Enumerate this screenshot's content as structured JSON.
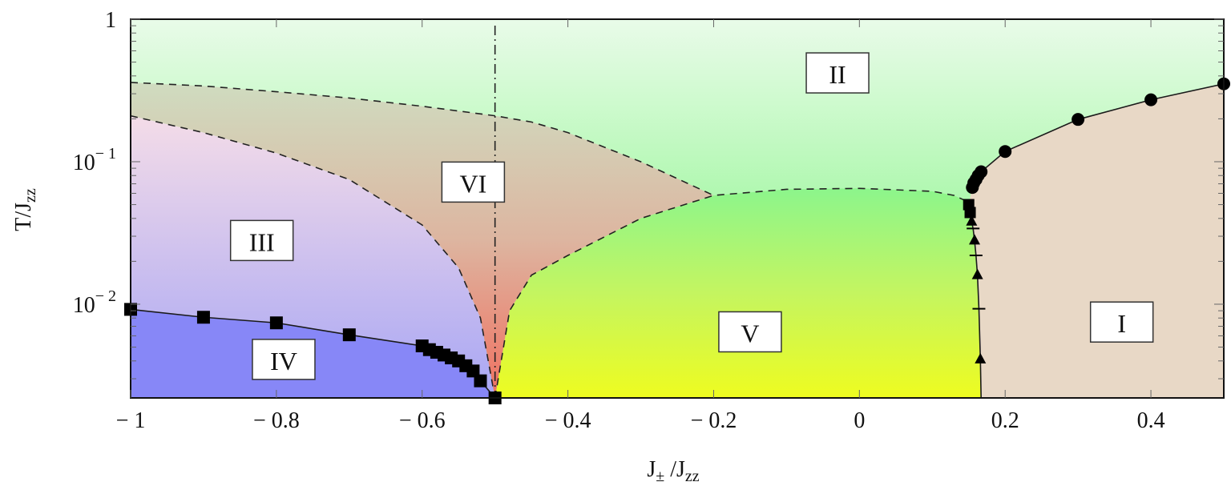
{
  "chart_data": {
    "type": "phase-diagram",
    "title": "",
    "xlabel": "J± /Jzz",
    "ylabel": "T/Jzz",
    "xscale": "linear",
    "yscale": "log",
    "xlim": [
      -1,
      0.5
    ],
    "ylim": [
      0.0022,
      1
    ],
    "x_ticks": [
      -1,
      -0.8,
      -0.6,
      -0.4,
      -0.2,
      0,
      0.2,
      0.4
    ],
    "x_tick_labels": [
      "− 1",
      "− 0.8",
      "− 0.6",
      "− 0.4",
      "− 0.2",
      "0",
      "0.2",
      "0.4"
    ],
    "y_ticks": [
      1,
      0.1,
      0.01
    ],
    "y_tick_labels": [
      "1",
      "10⁻¹",
      "10⁻²"
    ],
    "grid": false,
    "regions": [
      {
        "label": "I",
        "color": "#e8d8c6",
        "x": 0.36,
        "y": 0.0075
      },
      {
        "label": "II",
        "color": "#8ff58f",
        "x": -0.03,
        "y": 0.42
      },
      {
        "label": "III",
        "color": "#d9c6ec",
        "x": -0.82,
        "y": 0.028
      },
      {
        "label": "IV",
        "color": "#8585f8",
        "x": -0.79,
        "y": 0.0041
      },
      {
        "label": "V",
        "color": "#d7f63a",
        "x": -0.15,
        "y": 0.0064
      },
      {
        "label": "VI",
        "color": "#d8c0a8",
        "x": -0.53,
        "y": 0.072
      }
    ],
    "series": [
      {
        "name": "IV boundary (squares)",
        "marker": "square",
        "line": "solid",
        "x": [
          -1.0,
          -0.9,
          -0.8,
          -0.7,
          -0.6,
          -0.59,
          -0.58,
          -0.57,
          -0.56,
          -0.55,
          -0.54,
          -0.53,
          -0.52,
          -0.5
        ],
        "y": [
          0.0092,
          0.0081,
          0.0074,
          0.0061,
          0.0051,
          0.0048,
          0.0046,
          0.0044,
          0.0042,
          0.004,
          0.0037,
          0.0034,
          0.0029,
          0.0022
        ]
      },
      {
        "name": "I boundary (circles)",
        "marker": "circle",
        "line": "solid",
        "x": [
          0.155,
          0.157,
          0.16,
          0.163,
          0.167,
          0.2,
          0.3,
          0.4,
          0.5
        ],
        "y": [
          0.066,
          0.071,
          0.075,
          0.08,
          0.085,
          0.118,
          0.198,
          0.272,
          0.352
        ]
      },
      {
        "name": "I–V boundary (squares/triangles/bars)",
        "marker": "mixed",
        "line": "solid",
        "x": [
          0.15,
          0.152,
          0.154,
          0.156,
          0.158,
          0.16,
          0.162,
          0.164,
          0.166
        ],
        "y": [
          0.05,
          0.044,
          0.038,
          0.034,
          0.028,
          0.022,
          0.016,
          0.0093,
          0.0041
        ]
      },
      {
        "name": "upper dashed (II/VI crossover)",
        "line": "dashed",
        "x": [
          -1.0,
          -0.9,
          -0.8,
          -0.7,
          -0.6,
          -0.5,
          -0.45,
          -0.4,
          -0.3,
          -0.2
        ],
        "y": [
          0.36,
          0.34,
          0.31,
          0.28,
          0.245,
          0.21,
          0.19,
          0.16,
          0.1,
          0.058
        ]
      },
      {
        "name": "III/VI dashed",
        "line": "dashed",
        "x": [
          -1.0,
          -0.9,
          -0.8,
          -0.7,
          -0.6,
          -0.55,
          -0.52,
          -0.5
        ],
        "y": [
          0.21,
          0.16,
          0.115,
          0.075,
          0.036,
          0.018,
          0.008,
          0.0022
        ]
      },
      {
        "name": "V/VI and V/II dashed",
        "line": "dashed",
        "x": [
          -0.5,
          -0.48,
          -0.45,
          -0.4,
          -0.3,
          -0.2,
          -0.1,
          0.0,
          0.1,
          0.13,
          0.15
        ],
        "y": [
          0.0022,
          0.009,
          0.016,
          0.022,
          0.04,
          0.058,
          0.064,
          0.065,
          0.062,
          0.058,
          0.052
        ]
      },
      {
        "name": "J±=-0.5 dash-dot",
        "line": "dashdot",
        "x": [
          -0.5,
          -0.5
        ],
        "y": [
          0.0022,
          1
        ]
      }
    ]
  },
  "labels": {
    "xlabel_main": "J",
    "xlabel_sub": "±",
    "xlabel_rest": " /J",
    "xlabel_sub2": "zz",
    "ylabel_main": "T/J",
    "ylabel_sub": "zz"
  }
}
